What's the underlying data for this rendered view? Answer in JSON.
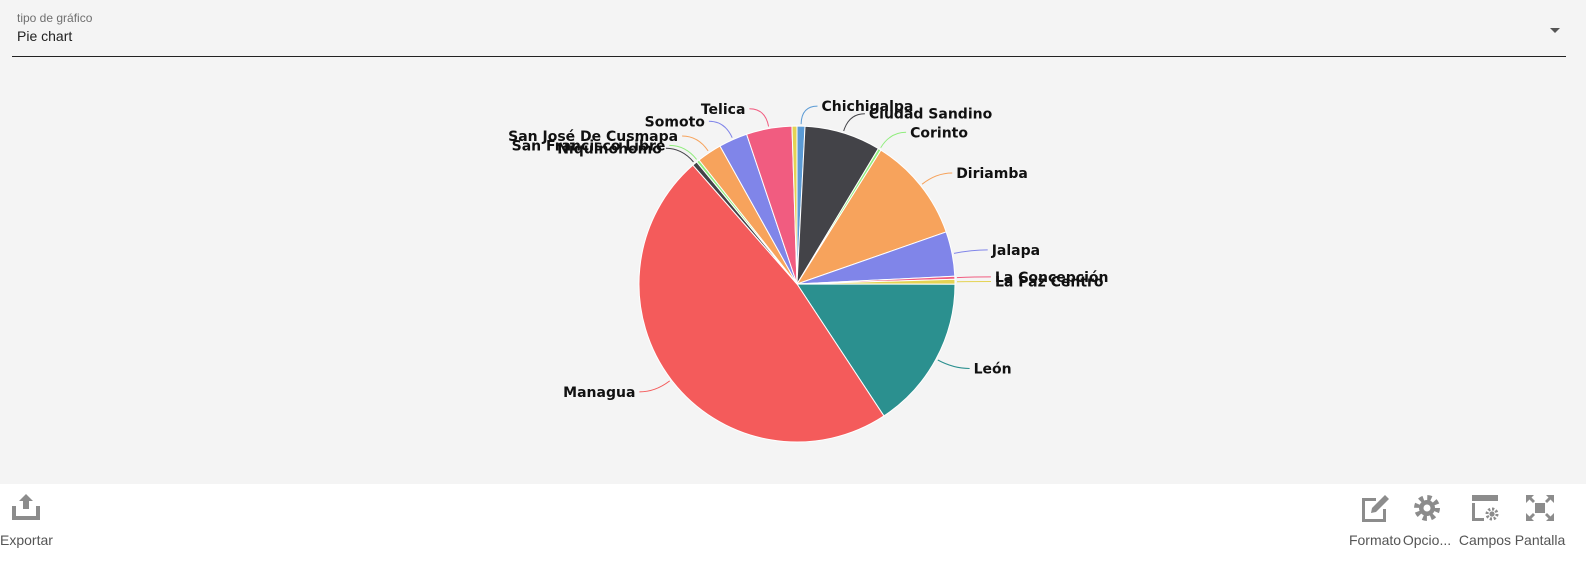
{
  "selector": {
    "label": "tipo de gráfico",
    "value": "Pie chart"
  },
  "chart_data": {
    "type": "pie",
    "title": "",
    "slices": [
      {
        "label": "Chichigalpa",
        "value": 0.8,
        "color": "#5b9bd5"
      },
      {
        "label": "Ciudad Sandino",
        "value": 7.7,
        "color": "#434348"
      },
      {
        "label": "Corinto",
        "value": 0.3,
        "color": "#90ed7d"
      },
      {
        "label": "Diriamba",
        "value": 10.6,
        "color": "#f7a35c"
      },
      {
        "label": "Jalapa",
        "value": 4.5,
        "color": "#8085e9"
      },
      {
        "label": "La Concepción",
        "value": 0.3,
        "color": "#f15c80"
      },
      {
        "label": "La Paz Centro",
        "value": 0.5,
        "color": "#e4d354"
      },
      {
        "label": "León",
        "value": 15.5,
        "color": "#2b908f"
      },
      {
        "label": "Managua",
        "value": 47.2,
        "color": "#f45b5b"
      },
      {
        "label": "Niquinohomo",
        "value": 0.5,
        "color": "#434348"
      },
      {
        "label": "San Francisco Libre",
        "value": 0.3,
        "color": "#90ed7d"
      },
      {
        "label": "San José De Cusmapa",
        "value": 2.5,
        "color": "#f7a35c"
      },
      {
        "label": "Somoto",
        "value": 2.9,
        "color": "#8085e9"
      },
      {
        "label": "Telica",
        "value": 4.6,
        "color": "#f15c80"
      },
      {
        "label": "",
        "value": 0.5,
        "color": "#e4d354"
      }
    ]
  },
  "toolbar": {
    "export_label": "Exportar",
    "format_label": "Formato",
    "options_label": "Opcio...",
    "fields_label": "Campos",
    "screen_label": "Pantalla"
  }
}
